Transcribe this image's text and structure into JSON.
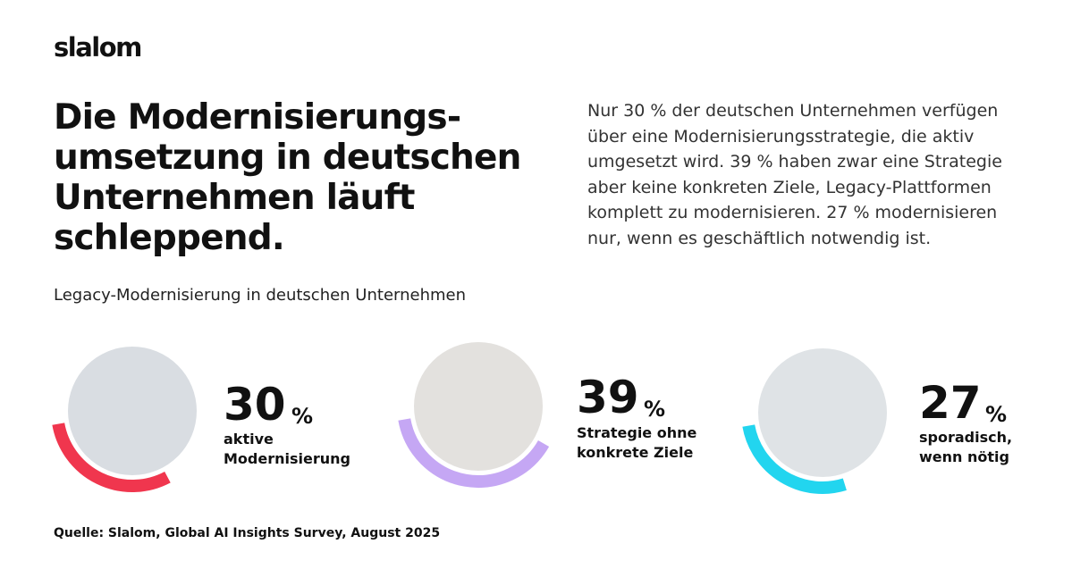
{
  "logo": "slalom",
  "headline": {
    "lines": [
      "Die Modernisierungs-",
      "umsetzung in deutschen",
      "Unternehmen läuft",
      "schleppend."
    ]
  },
  "intro": {
    "lines": [
      "Nur 30 % der deutschen Unternehmen verfügen",
      "über eine Modernisierungsstrategie, die aktiv",
      "umgesetzt wird. 39 % haben zwar eine Strategie",
      "aber keine konkreten Ziele, Legacy-Plattformen",
      "komplett zu modernisieren. 27 % modernisieren",
      "nur, wenn es geschäftlich notwendig ist."
    ]
  },
  "subtitle": "Legacy-Modernisierung in deutschen Unternehmen",
  "stats": [
    {
      "value": 30,
      "unit": "%",
      "label": [
        "aktive",
        "Modernisierung"
      ],
      "color": "#f0364e"
    },
    {
      "value": 39,
      "unit": "%",
      "label": [
        "Strategie ohne",
        "konkrete Ziele"
      ],
      "color": "#c5a7f4"
    },
    {
      "value": 27,
      "unit": "%",
      "label": [
        "sporadisch,",
        "wenn nötig"
      ],
      "color": "#22d5ef"
    }
  ],
  "source": "Quelle: Slalom, Global AI Insights Survey, August 2025"
}
